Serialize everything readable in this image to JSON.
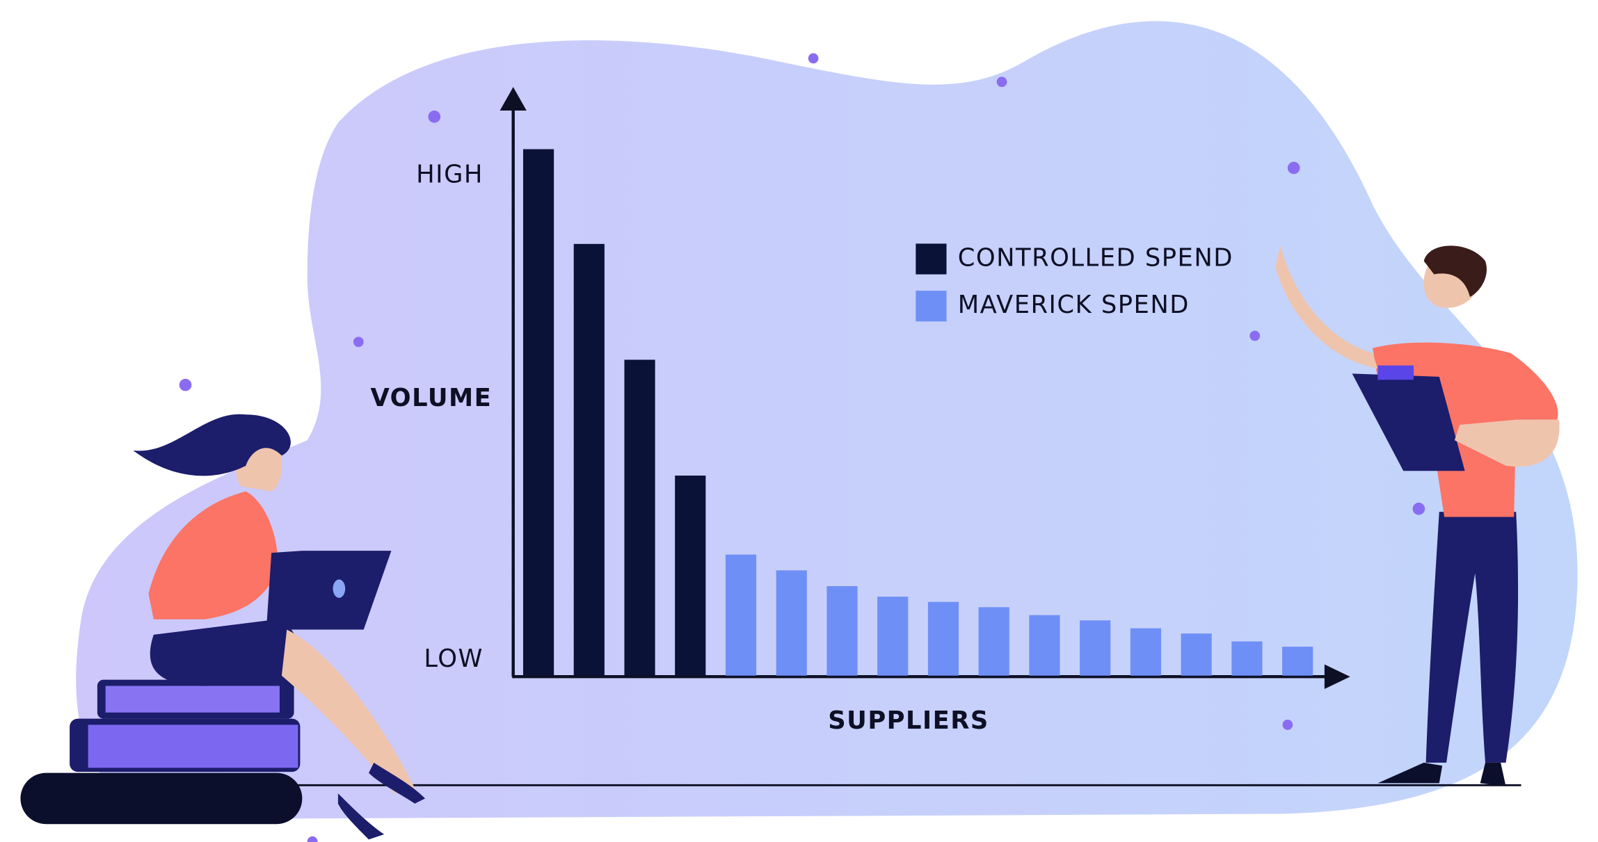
{
  "chart_data": {
    "type": "bar",
    "y_label": "VOLUME",
    "x_label": "SUPPLIERS",
    "categories": [
      null,
      null,
      null,
      null,
      null,
      null,
      null,
      null,
      null,
      null,
      null,
      null,
      null,
      null,
      null,
      null
    ],
    "series": [
      {
        "name": "CONTROLLED SPEND",
        "color": "#0b1238",
        "values": [
          100,
          82,
          60,
          38,
          null,
          null,
          null,
          null,
          null,
          null,
          null,
          null,
          null,
          null,
          null,
          null
        ]
      },
      {
        "name": "MAVERICK SPEND",
        "color": "#6e8ff6",
        "values": [
          null,
          null,
          null,
          null,
          23,
          20,
          17,
          15,
          14,
          13,
          11.5,
          10.5,
          9,
          8,
          6.5,
          5.5
        ]
      }
    ],
    "ylim": [
      0,
      112
    ],
    "yticks": [
      {
        "value": 95,
        "label": "HIGH"
      },
      {
        "value": 3,
        "label": "LOW"
      }
    ]
  }
}
